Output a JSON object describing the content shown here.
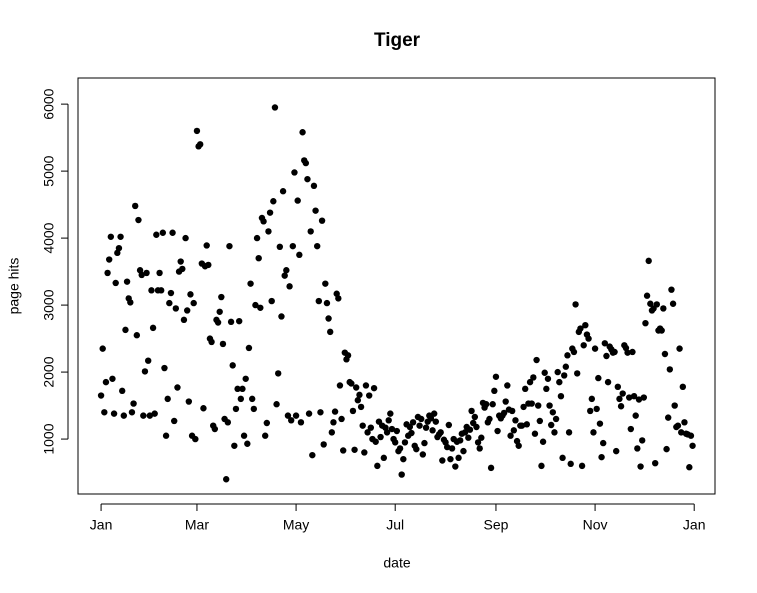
{
  "chart_data": {
    "type": "scatter",
    "title": "Tiger",
    "x_label": "date",
    "y_label": "page hits",
    "color": "#000000",
    "grid": false,
    "xlim": [
      -14.2,
      377.8
    ],
    "ylim": [
      180,
      6390
    ],
    "xticks": [
      {
        "value": 0,
        "label": "Jan"
      },
      {
        "value": 59,
        "label": "Mar"
      },
      {
        "value": 120,
        "label": "May"
      },
      {
        "value": 181,
        "label": "Jul"
      },
      {
        "value": 243,
        "label": "Sep"
      },
      {
        "value": 304,
        "label": "Nov"
      },
      {
        "value": 365,
        "label": "Jan"
      }
    ],
    "yticks": [
      1000,
      2000,
      3000,
      4000,
      5000,
      6000
    ],
    "x": [
      0,
      1,
      2,
      3,
      4,
      5,
      6,
      7,
      8,
      9,
      10,
      11,
      12,
      13,
      14,
      15,
      16,
      17,
      18,
      19,
      20,
      21,
      22,
      23,
      24,
      25,
      26,
      27,
      28,
      29,
      30,
      31,
      32,
      33,
      34,
      35,
      36,
      37,
      38,
      39,
      40,
      41,
      42,
      43,
      44,
      45,
      46,
      47,
      48,
      49,
      50,
      51,
      52,
      53,
      54,
      55,
      56,
      57,
      58,
      59,
      60,
      61,
      62,
      63,
      64,
      65,
      66,
      67,
      68,
      69,
      70,
      71,
      72,
      73,
      74,
      75,
      76,
      77,
      78,
      79,
      80,
      81,
      82,
      83,
      84,
      85,
      86,
      87,
      88,
      89,
      90,
      91,
      92,
      93,
      94,
      95,
      96,
      97,
      98,
      99,
      100,
      101,
      102,
      103,
      104,
      105,
      106,
      107,
      108,
      109,
      110,
      111,
      112,
      113,
      114,
      115,
      116,
      117,
      118,
      119,
      120,
      121,
      122,
      123,
      124,
      125,
      126,
      127,
      128,
      129,
      130,
      131,
      132,
      133,
      134,
      135,
      136,
      137,
      138,
      139,
      140,
      141,
      142,
      143,
      144,
      145,
      146,
      147,
      148,
      149,
      150,
      151,
      152,
      153,
      154,
      155,
      156,
      157,
      158,
      159,
      160,
      161,
      162,
      163,
      164,
      165,
      166,
      167,
      168,
      169,
      170,
      171,
      172,
      173,
      174,
      175,
      176,
      177,
      178,
      179,
      180,
      181,
      182,
      183,
      184,
      185,
      186,
      187,
      188,
      189,
      190,
      191,
      192,
      193,
      194,
      195,
      196,
      197,
      198,
      199,
      200,
      201,
      202,
      203,
      204,
      205,
      206,
      207,
      208,
      209,
      210,
      211,
      212,
      213,
      214,
      215,
      216,
      217,
      218,
      219,
      220,
      221,
      222,
      223,
      224,
      225,
      226,
      227,
      228,
      229,
      230,
      231,
      232,
      233,
      234,
      235,
      236,
      237,
      238,
      239,
      240,
      241,
      242,
      243,
      244,
      245,
      246,
      247,
      248,
      249,
      250,
      251,
      252,
      253,
      254,
      255,
      256,
      257,
      258,
      259,
      260,
      261,
      262,
      263,
      264,
      265,
      266,
      267,
      268,
      269,
      270,
      271,
      272,
      273,
      274,
      275,
      276,
      277,
      278,
      279,
      280,
      281,
      282,
      283,
      284,
      285,
      286,
      287,
      288,
      289,
      290,
      291,
      292,
      293,
      294,
      295,
      296,
      297,
      298,
      299,
      300,
      301,
      302,
      303,
      304,
      305,
      306,
      307,
      308,
      309,
      310,
      311,
      312,
      313,
      314,
      315,
      316,
      317,
      318,
      319,
      320,
      321,
      322,
      323,
      324,
      325,
      326,
      327,
      328,
      329,
      330,
      331,
      332,
      333,
      334,
      335,
      336,
      337,
      338,
      339,
      340,
      341,
      342,
      343,
      344,
      345,
      346,
      347,
      348,
      349,
      350,
      351,
      352,
      353,
      354,
      355,
      356,
      357,
      358,
      359,
      360,
      361,
      362,
      363,
      364
    ],
    "values": [
      1650,
      2350,
      1400,
      1850,
      3480,
      3680,
      4020,
      1900,
      1380,
      3330,
      3780,
      3850,
      4020,
      1720,
      1350,
      2630,
      3350,
      3100,
      3040,
      1400,
      1530,
      4480,
      2550,
      4270,
      3520,
      3450,
      1350,
      2010,
      3480,
      2170,
      1350,
      3220,
      2660,
      1380,
      4050,
      3220,
      3480,
      3220,
      4080,
      2060,
      1050,
      1600,
      3030,
      3180,
      4080,
      1270,
      2950,
      1770,
      3500,
      3650,
      3540,
      2780,
      4000,
      2920,
      1560,
      3160,
      1050,
      3030,
      1000,
      5600,
      5370,
      5400,
      3620,
      1460,
      3580,
      3890,
      3600,
      2500,
      2450,
      1200,
      1150,
      2780,
      2740,
      2900,
      3120,
      2420,
      1300,
      400,
      1250,
      3880,
      2750,
      2100,
      900,
      1450,
      1750,
      2760,
      1600,
      1750,
      1050,
      1900,
      930,
      2360,
      3320,
      1600,
      1450,
      3000,
      4000,
      3700,
      2960,
      4300,
      4250,
      1050,
      1240,
      4100,
      4380,
      3060,
      4550,
      5950,
      1520,
      1980,
      3870,
      2830,
      4700,
      3440,
      3520,
      1350,
      3280,
      1280,
      3880,
      4980,
      1350,
      4560,
      3750,
      1250,
      5580,
      5160,
      5120,
      4880,
      1380,
      4100,
      760,
      4780,
      4410,
      3880,
      3060,
      1400,
      4260,
      920,
      3320,
      3030,
      2800,
      2600,
      1100,
      1250,
      1410,
      3170,
      3100,
      1800,
      1300,
      830,
      2290,
      2190,
      2250,
      1850,
      1830,
      1420,
      840,
      1770,
      1580,
      1660,
      1480,
      1200,
      800,
      1800,
      1100,
      1650,
      1170,
      1000,
      1760,
      960,
      600,
      1260,
      1030,
      1200,
      720,
      1170,
      1100,
      1280,
      1380,
      1150,
      1000,
      950,
      1120,
      820,
      860,
      470,
      700,
      950,
      1220,
      1050,
      1180,
      1090,
      1250,
      900,
      850,
      1330,
      1200,
      1300,
      770,
      940,
      1170,
      1260,
      1350,
      1310,
      1130,
      1380,
      1260,
      1030,
      1070,
      1100,
      680,
      990,
      950,
      880,
      1210,
      700,
      860,
      1000,
      590,
      960,
      720,
      980,
      1080,
      820,
      1100,
      1180,
      1020,
      1140,
      1420,
      1240,
      1330,
      1180,
      950,
      860,
      1020,
      1540,
      1470,
      1520,
      1250,
      1300,
      570,
      1520,
      1720,
      1930,
      1120,
      1350,
      1310,
      1350,
      1390,
      1560,
      1800,
      1440,
      1050,
      1420,
      1130,
      1280,
      970,
      900,
      1200,
      1200,
      1480,
      1750,
      1220,
      1530,
      1850,
      1530,
      1920,
      1080,
      2180,
      1500,
      1270,
      600,
      960,
      1990,
      1750,
      1900,
      1500,
      1210,
      1400,
      1100,
      1300,
      2000,
      1850,
      1640,
      720,
      1950,
      2080,
      2250,
      1100,
      630,
      2350,
      2300,
      3010,
      1980,
      2600,
      2650,
      600,
      2400,
      2700,
      2560,
      2500,
      1420,
      1600,
      1100,
      2350,
      1450,
      1910,
      1230,
      730,
      940,
      2430,
      2240,
      1850,
      2380,
      2340,
      2290,
      2300,
      820,
      1780,
      1600,
      1490,
      1680,
      2400,
      2360,
      2290,
      1620,
      1150,
      2300,
      1640,
      1350,
      860,
      1590,
      590,
      980,
      1620,
      2730,
      3140,
      3660,
      3020,
      2920,
      2950,
      640,
      3010,
      2620,
      2650,
      2620,
      2950,
      2270,
      850,
      1320,
      2040,
      3230,
      3020,
      1500,
      1180,
      1200,
      2350,
      1100,
      1780,
      1250,
      1080,
      1070,
      580,
      1050,
      900
    ]
  }
}
